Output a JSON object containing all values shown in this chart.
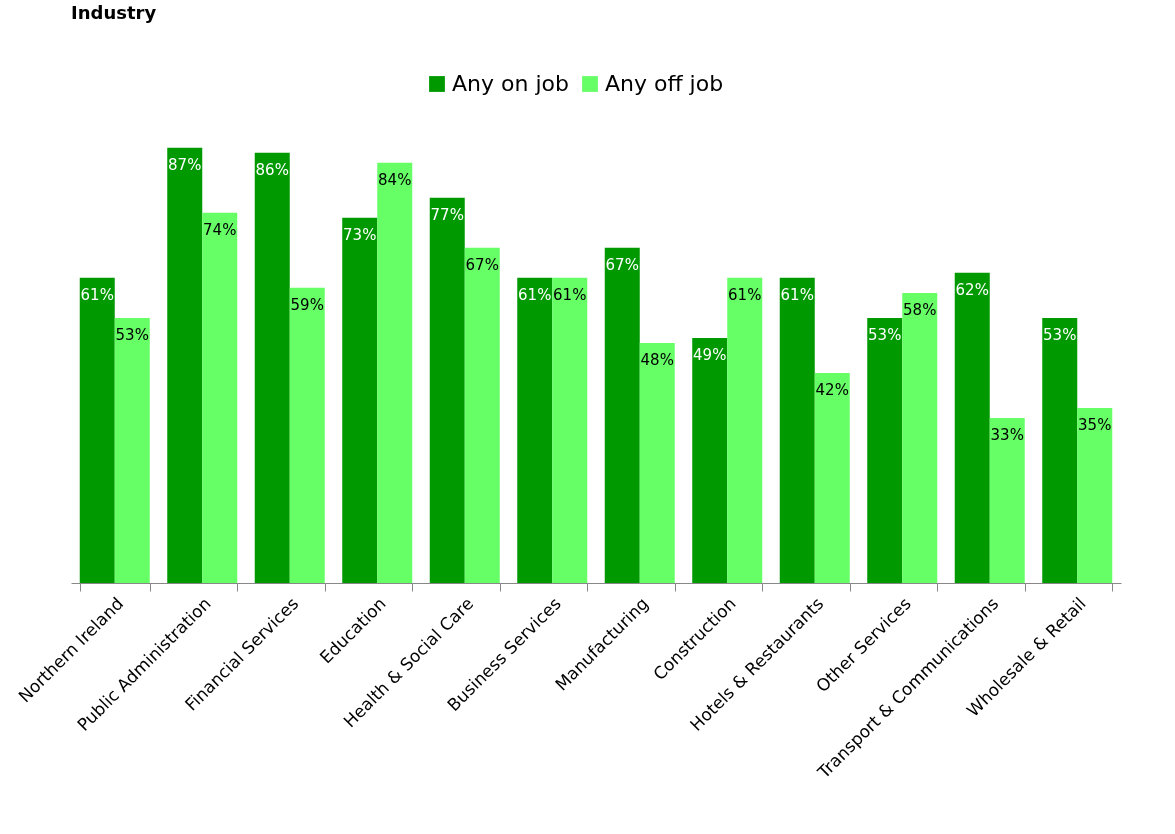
{
  "chart_data": {
    "type": "bar",
    "title": "Industry",
    "categories": [
      "Northern Ireland",
      "Public Administration",
      "Financial Services",
      "Education",
      "Health & Social Care",
      "Business Services",
      "Manufacturing",
      "Construction",
      "Hotels & Restaurants",
      "Other Services",
      "Transport & Communications",
      "Wholesale & Retail"
    ],
    "series": [
      {
        "name": "Any on job",
        "color": "#009900",
        "values": [
          61,
          87,
          86,
          73,
          77,
          61,
          67,
          49,
          61,
          53,
          62,
          53
        ],
        "value_labels": [
          "61%",
          "87%",
          "86%",
          "73%",
          "77%",
          "61%",
          "67%",
          "49%",
          "61%",
          "53%",
          "62%",
          "53%"
        ]
      },
      {
        "name": "Any off job",
        "color": "#66ff66",
        "values": [
          53,
          74,
          59,
          84,
          67,
          61,
          48,
          61,
          42,
          58,
          33,
          35
        ],
        "value_labels": [
          "53%",
          "74%",
          "59%",
          "84%",
          "67%",
          "61%",
          "48%",
          "61%",
          "42%",
          "58%",
          "33%",
          "35%"
        ]
      }
    ],
    "grid": false,
    "legend": "top"
  }
}
